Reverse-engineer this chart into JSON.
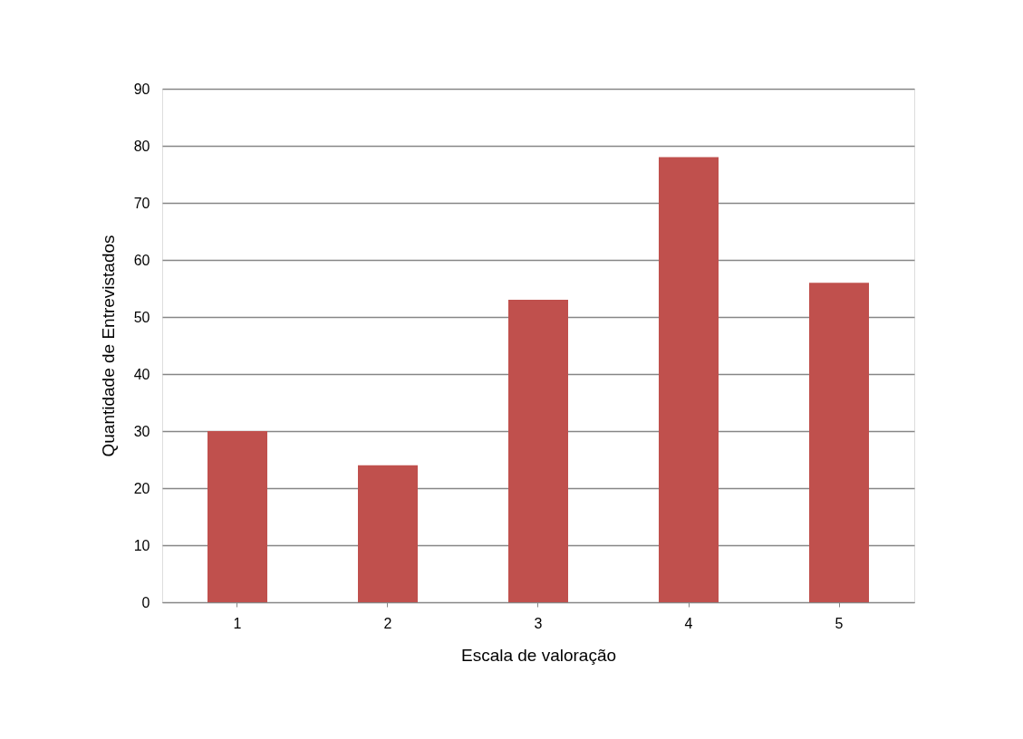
{
  "chart_data": {
    "type": "bar",
    "xlabel": "Escala de valoração",
    "ylabel": "Quantidade de Entrevistados",
    "categories": [
      "1",
      "2",
      "3",
      "4",
      "5"
    ],
    "values": [
      30,
      24,
      53,
      78,
      56
    ],
    "color": "#c0504d",
    "ylim": [
      0,
      90
    ],
    "yticks": [
      0,
      10,
      20,
      30,
      40,
      50,
      60,
      70,
      80,
      90
    ],
    "grid": "y"
  }
}
